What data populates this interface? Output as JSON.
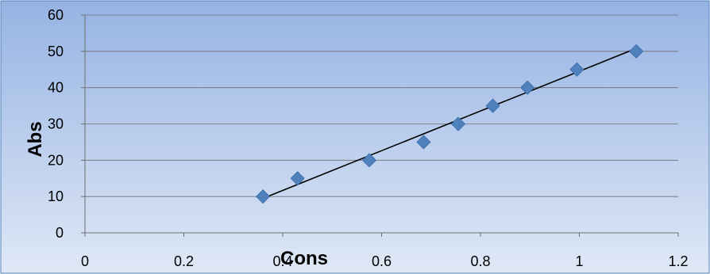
{
  "chart_data": {
    "type": "scatter",
    "title": "",
    "xlabel": "Cons",
    "ylabel": "Abs",
    "xlim": [
      0,
      1.2
    ],
    "ylim": [
      0,
      60
    ],
    "x_ticks": [
      "0",
      "0.2",
      "0.4",
      "0.6",
      "0.8",
      "1",
      "1.2"
    ],
    "y_ticks": [
      "0",
      "10",
      "20",
      "30",
      "40",
      "50",
      "60"
    ],
    "x_tick_values": [
      0,
      0.2,
      0.4,
      0.6,
      0.8,
      1.0,
      1.2
    ],
    "y_tick_values": [
      0,
      10,
      20,
      30,
      40,
      50,
      60
    ],
    "grid": "horizontal",
    "legend": "none",
    "series": [
      {
        "marker": "diamond",
        "color": "#4f81bd",
        "x": [
          0.36,
          0.43,
          0.575,
          0.685,
          0.755,
          0.825,
          0.895,
          0.995,
          1.115
        ],
        "y": [
          10,
          15,
          20,
          25,
          30,
          35,
          40,
          45,
          50
        ]
      }
    ],
    "trendline": {
      "type": "linear",
      "color": "#000000",
      "x": [
        0.36,
        1.115
      ],
      "y": [
        9.5,
        50.8
      ]
    },
    "background": {
      "gradient_top": "#95b3e3",
      "gradient_bottom": "#dfe8f6",
      "border": "#4f81bd"
    }
  }
}
